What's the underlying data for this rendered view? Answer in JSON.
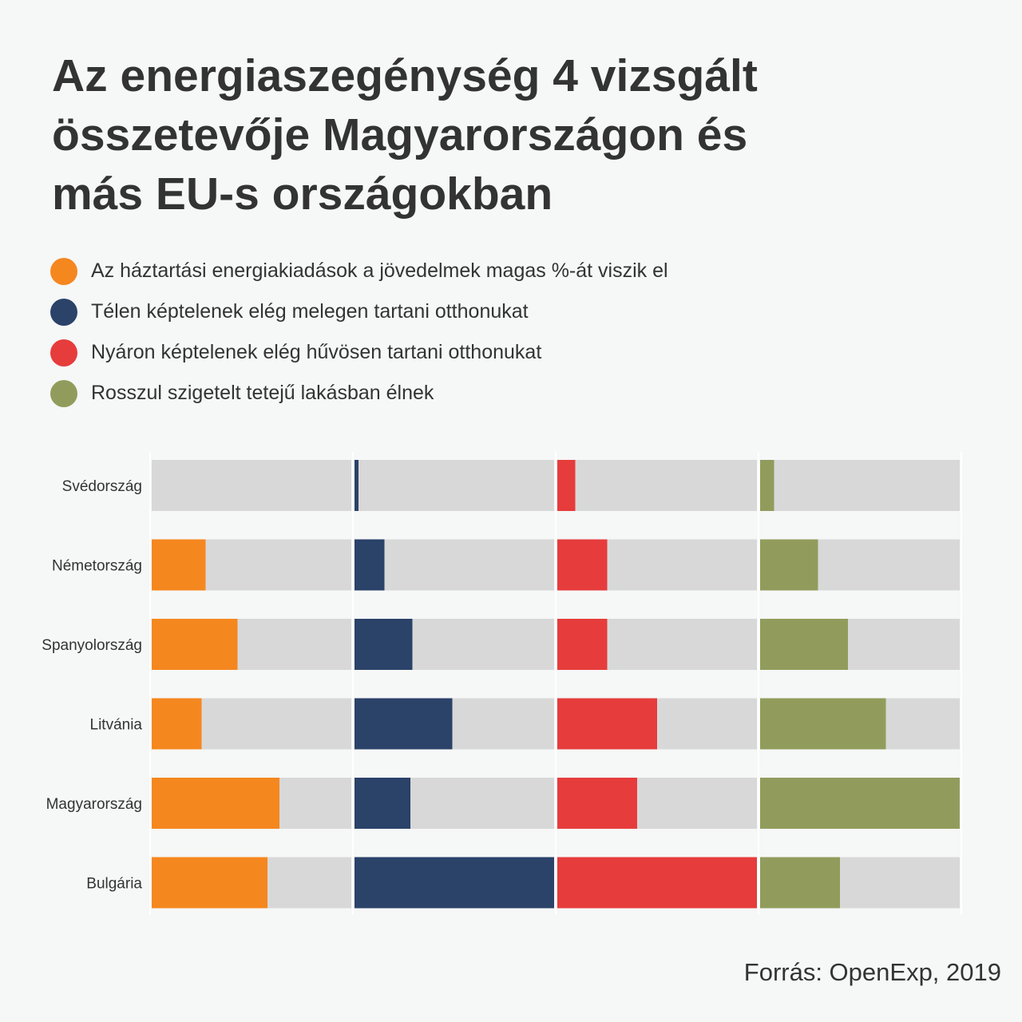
{
  "title_lines": [
    "Az energiaszegénység 4 vizsgált",
    "összetevője Magyarországon és",
    "más EU-s országokban"
  ],
  "source": "Forrás: OpenExp, 2019",
  "colors": {
    "background": "#f6f7f7",
    "track": "#d8d8d8",
    "separator": "#ffffff"
  },
  "chart_data": {
    "type": "bar",
    "orientation": "horizontal",
    "layout": "small-multiples",
    "categories": [
      "Svédország",
      "Németország",
      "Spanyolország",
      "Litvánia",
      "Magyarország",
      "Bulgária"
    ],
    "xlim": [
      0,
      1
    ],
    "value_scale": "relative share of each panel (no axis printed)",
    "grid": false,
    "legend_position": "top",
    "series": [
      {
        "name": "Az háztartási energiakiadások a jövedelmek magas %-át viszik el",
        "color": "#f5871f",
        "values": [
          0.0,
          0.27,
          0.43,
          0.25,
          0.64,
          0.58
        ]
      },
      {
        "name": "Télen képtelenek elég melegen tartani otthonukat",
        "color": "#2b4269",
        "values": [
          0.02,
          0.15,
          0.29,
          0.49,
          0.28,
          1.0
        ]
      },
      {
        "name": "Nyáron képtelenek elég hűvösen tartani otthonukat",
        "color": "#e63c3c",
        "values": [
          0.09,
          0.25,
          0.25,
          0.5,
          0.4,
          1.0
        ]
      },
      {
        "name": "Rosszul szigetelt tetejű lakásban élnek",
        "color": "#919c5c",
        "values": [
          0.07,
          0.29,
          0.44,
          0.63,
          1.0,
          0.4
        ]
      }
    ]
  }
}
